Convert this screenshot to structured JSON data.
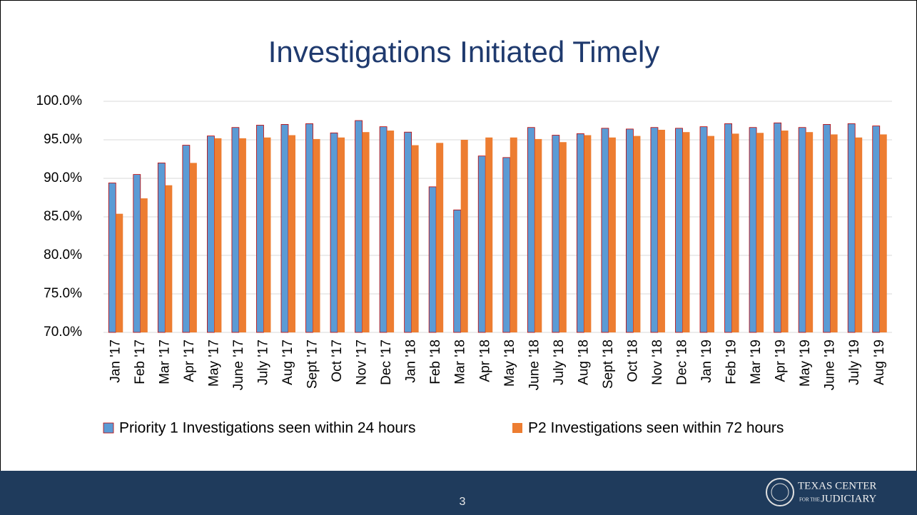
{
  "chart_data": {
    "type": "bar",
    "title": "Investigations Initiated Timely",
    "categories": [
      "Jan '17",
      "Feb '17",
      "Mar '17",
      "Apr '17",
      "May '17",
      "June '17",
      "July '17",
      "Aug '17",
      "Sept '17",
      "Oct '17",
      "Nov '17",
      "Dec '17",
      "Jan '18",
      "Feb '18",
      "Mar '18",
      "Apr '18",
      "May '18",
      "June '18",
      "July '18",
      "Aug '18",
      "Sept '18",
      "Oct '18",
      "Nov '18",
      "Dec '18",
      "Jan '19",
      "Feb '19",
      "Mar '19",
      "Apr '19",
      "May '19",
      "June '19",
      "July '19",
      "Aug '19"
    ],
    "series": [
      {
        "name": "Priority 1 Investigations seen within 24 hours",
        "color": "#5b9bd5",
        "values": [
          89.4,
          90.5,
          92.0,
          94.3,
          95.5,
          96.6,
          96.9,
          97.0,
          97.1,
          95.9,
          97.5,
          96.7,
          96.0,
          88.9,
          85.9,
          92.9,
          92.7,
          96.6,
          95.6,
          95.8,
          96.5,
          96.4,
          96.6,
          96.5,
          96.7,
          97.1,
          96.6,
          97.2,
          96.6,
          97.0,
          97.1,
          96.8
        ]
      },
      {
        "name": "P2 Investigations seen within 72 hours",
        "color": "#ed7d31",
        "values": [
          85.4,
          87.4,
          89.1,
          92.0,
          95.2,
          95.2,
          95.3,
          95.6,
          95.1,
          95.3,
          96.0,
          96.2,
          94.3,
          94.6,
          95.0,
          95.3,
          95.3,
          95.1,
          94.7,
          95.6,
          95.3,
          95.5,
          96.3,
          96.0,
          95.5,
          95.8,
          95.9,
          96.2,
          96.0,
          95.7,
          95.3,
          95.7
        ]
      }
    ],
    "ylim": [
      70,
      100
    ],
    "yticks": [
      {
        "value": 70,
        "label": "70.0%"
      },
      {
        "value": 75,
        "label": "75.0%"
      },
      {
        "value": 80,
        "label": "80.0%"
      },
      {
        "value": 85,
        "label": "85.0%"
      },
      {
        "value": 90,
        "label": "90.0%"
      },
      {
        "value": 95,
        "label": "95.0%"
      },
      {
        "value": 100,
        "label": "100.0%"
      }
    ],
    "grid": true,
    "legend": "bottom"
  },
  "footer": {
    "page": "3",
    "logo_line1": "TEXAS CENTER",
    "logo_line2": "FOR THE",
    "logo_line3": "JUDICIARY"
  }
}
